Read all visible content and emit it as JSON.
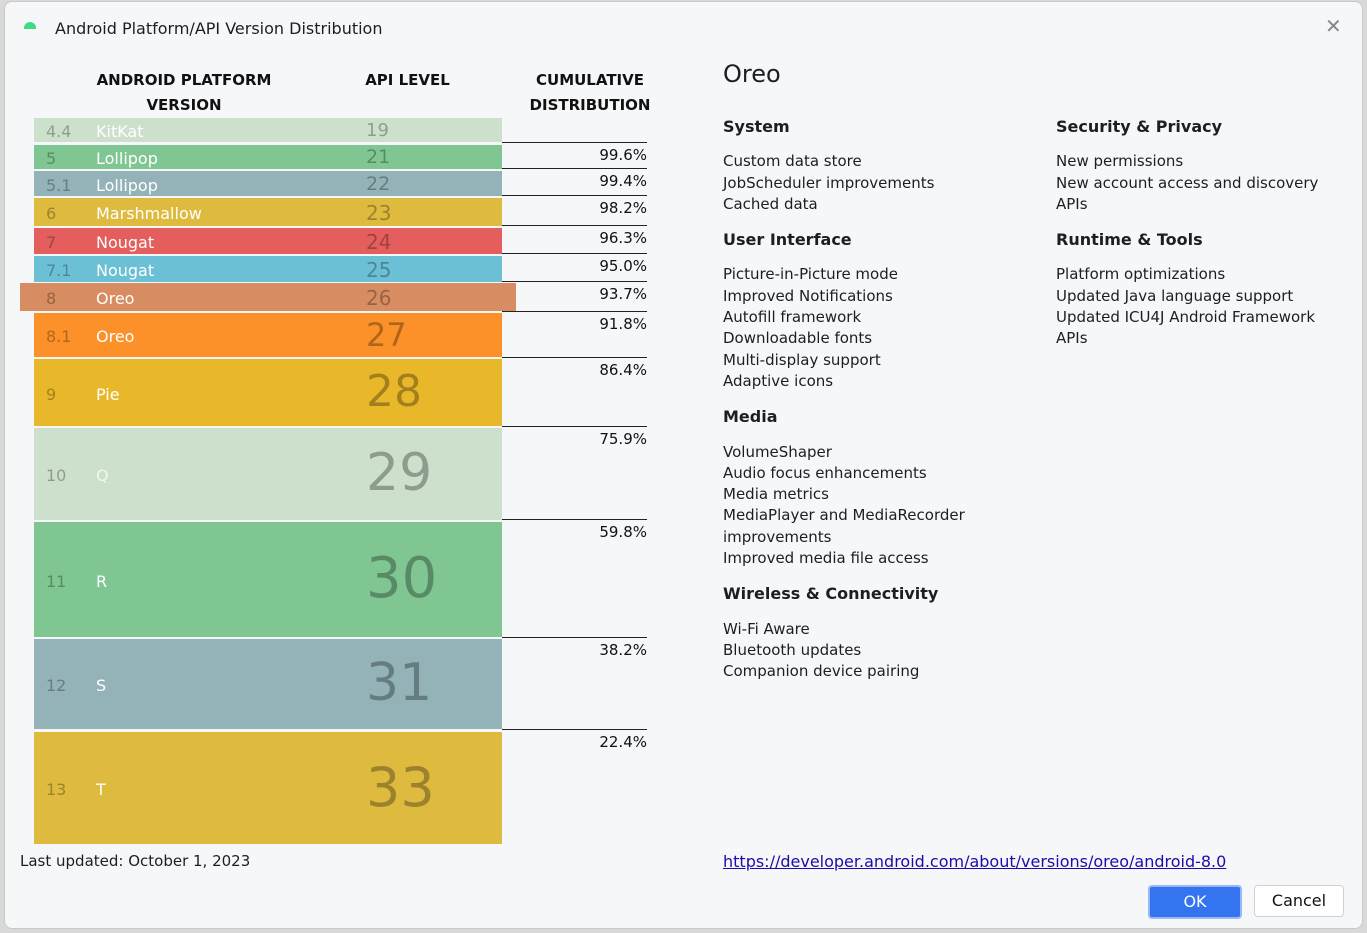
{
  "window": {
    "title": "Android Platform/API Version Distribution"
  },
  "headers": {
    "version": "ANDROID PLATFORM VERSION",
    "api": "API LEVEL",
    "dist": "CUMULATIVE DISTRIBUTION"
  },
  "rows": [
    {
      "num": "4.4",
      "name": "KitKat",
      "api": "19",
      "color": "#cde0cb",
      "dist": "99.6%"
    },
    {
      "num": "5",
      "name": "Lollipop",
      "api": "21",
      "color": "#7fc692",
      "dist": "99.4%"
    },
    {
      "num": "5.1",
      "name": "Lollipop",
      "api": "22",
      "color": "#93b3b8",
      "dist": "98.2%"
    },
    {
      "num": "6",
      "name": "Marshmallow",
      "api": "23",
      "color": "#debb3f",
      "dist": "96.3%"
    },
    {
      "num": "7",
      "name": "Nougat",
      "api": "24",
      "color": "#e45e5e",
      "dist": "95.0%"
    },
    {
      "num": "7.1",
      "name": "Nougat",
      "api": "25",
      "color": "#6cc0d5",
      "dist": "93.7%"
    },
    {
      "num": "8",
      "name": "Oreo",
      "api": "26",
      "color": "#d88c62",
      "dist": "91.8%"
    },
    {
      "num": "8.1",
      "name": "Oreo",
      "api": "27",
      "color": "#fd9129",
      "dist": "86.4%"
    },
    {
      "num": "9",
      "name": "Pie",
      "api": "28",
      "color": "#e9b82a",
      "dist": "75.9%"
    },
    {
      "num": "10",
      "name": "Q",
      "api": "29",
      "color": "#cde0cb",
      "dist": "59.8%"
    },
    {
      "num": "11",
      "name": "R",
      "api": "30",
      "color": "#7fc692",
      "dist": "38.2%"
    },
    {
      "num": "12",
      "name": "S",
      "api": "31",
      "color": "#93b3b8",
      "dist": "22.4%"
    },
    {
      "num": "13",
      "name": "T",
      "api": "33",
      "color": "#debb3f",
      "dist": ""
    }
  ],
  "last_updated": "Last updated: October 1, 2023",
  "detail": {
    "title": "Oreo",
    "left": [
      {
        "heading": "System",
        "items": [
          "Custom data store",
          "JobScheduler improvements",
          "Cached data"
        ]
      },
      {
        "heading": "User Interface",
        "items": [
          "Picture-in-Picture mode",
          "Improved Notifications",
          "Autofill framework",
          "Downloadable fonts",
          "Multi-display support",
          "Adaptive icons"
        ]
      },
      {
        "heading": "Media",
        "items": [
          "VolumeShaper",
          "Audio focus enhancements",
          "Media metrics",
          "MediaPlayer and MediaRecorder\nimprovements",
          "Improved media file access"
        ]
      },
      {
        "heading": "Wireless & Connectivity",
        "items": [
          "Wi-Fi Aware",
          "Bluetooth updates",
          "Companion device pairing"
        ]
      }
    ],
    "right": [
      {
        "heading": "Security & Privacy",
        "items": [
          "New permissions",
          "New account access and discovery\nAPIs"
        ]
      },
      {
        "heading": "Runtime & Tools",
        "items": [
          "Platform optimizations",
          "Updated Java language support",
          "Updated ICU4J Android Framework\nAPIs"
        ]
      }
    ],
    "link": "https://developer.android.com/about/versions/oreo/android-8.0"
  },
  "buttons": {
    "ok": "OK",
    "cancel": "Cancel"
  }
}
